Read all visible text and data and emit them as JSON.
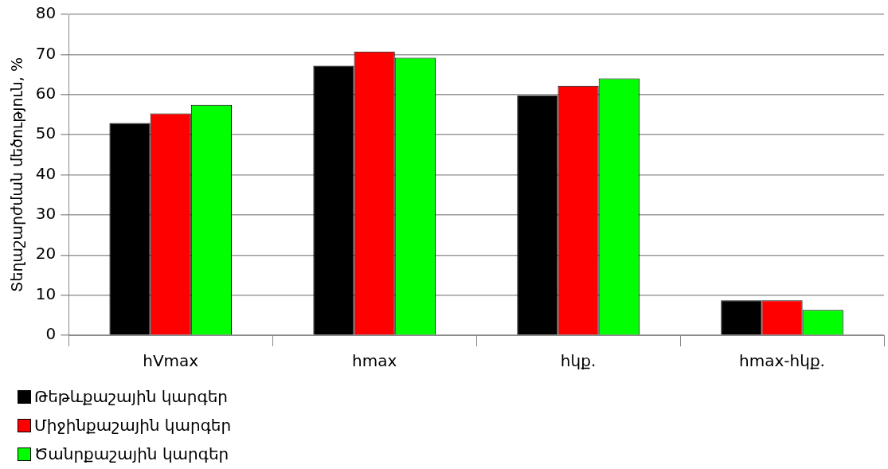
{
  "chart_data": {
    "type": "bar",
    "ylabel": "Տեղաշարժման մեծություն, %",
    "categories": [
      "hVmax",
      "hmax",
      "hկք.",
      "hmax-hկք."
    ],
    "series": [
      {
        "name": "Թեթևքաշային կարգեր",
        "color": "#000000",
        "values": [
          52.9,
          67.2,
          59.8,
          8.7
        ]
      },
      {
        "name": "Միջինքաշային կարգեր",
        "color": "#ff0000",
        "values": [
          55.3,
          70.7,
          62.2,
          8.7
        ]
      },
      {
        "name": "Ծանրքաշային կարգեր",
        "color": "#00ff00",
        "values": [
          57.4,
          69.2,
          64.0,
          6.3
        ]
      }
    ],
    "ylim": [
      0,
      80
    ],
    "yticks": [
      0,
      10,
      20,
      30,
      40,
      50,
      60,
      70,
      80
    ],
    "grid": "y",
    "legend": "bottom left"
  }
}
